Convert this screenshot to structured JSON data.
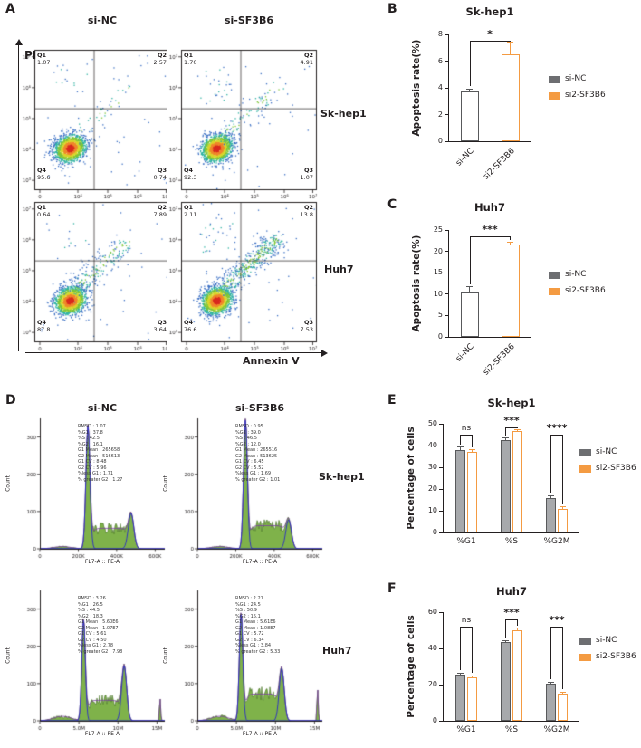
{
  "colors": {
    "ink": "#231f20",
    "gray": "#58595b",
    "gray_fill": "#a7a9ac",
    "orange": "#f49b42",
    "legend_gray": "#6d6e71",
    "green_fill": "#7fb24a"
  },
  "panel_a": {
    "label": "A",
    "col_headers": [
      "si-NC",
      "si-SF3B6"
    ],
    "row_labels": [
      "Sk-hep1",
      "Huh7"
    ],
    "y_axis_label": "PI",
    "x_axis_label": "Annexin V",
    "x_ticks": [
      "0",
      "10⁴",
      "10⁵",
      "10⁶",
      "10⁷"
    ],
    "y_ticks": [
      "10⁷",
      "10⁶",
      "10⁵",
      "10⁴",
      "10³"
    ],
    "plots": [
      {
        "id": "sk_nc",
        "row": "Sk-hep1",
        "col": "si-NC",
        "quadrants": {
          "q1": {
            "label": "Q1",
            "value": "1.07"
          },
          "q2": {
            "label": "Q2",
            "value": "2.57"
          },
          "q3": {
            "label": "Q3",
            "value": "0.74"
          },
          "q4": {
            "label": "Q4",
            "value": "95.6"
          }
        }
      },
      {
        "id": "sk_sf",
        "row": "Sk-hep1",
        "col": "si-SF3B6",
        "quadrants": {
          "q1": {
            "label": "Q1",
            "value": "1.70"
          },
          "q2": {
            "label": "Q2",
            "value": "4.91"
          },
          "q3": {
            "label": "Q3",
            "value": "1.07"
          },
          "q4": {
            "label": "Q4",
            "value": "92.3"
          }
        }
      },
      {
        "id": "huh_nc",
        "row": "Huh7",
        "col": "si-NC",
        "quadrants": {
          "q1": {
            "label": "Q1",
            "value": "0.64"
          },
          "q2": {
            "label": "Q2",
            "value": "7.89"
          },
          "q3": {
            "label": "Q3",
            "value": "3.64"
          },
          "q4": {
            "label": "Q4",
            "value": "87.8"
          }
        }
      },
      {
        "id": "huh_sf",
        "row": "Huh7",
        "col": "si-SF3B6",
        "quadrants": {
          "q1": {
            "label": "Q1",
            "value": "2.11"
          },
          "q2": {
            "label": "Q2",
            "value": "13.8"
          },
          "q3": {
            "label": "Q3",
            "value": "7.53"
          },
          "q4": {
            "label": "Q4",
            "value": "76.6"
          }
        }
      }
    ]
  },
  "panel_d": {
    "label": "D",
    "col_headers": [
      "si-NC",
      "si-SF3B6"
    ],
    "row_labels": [
      "Sk-hep1",
      "Huh7"
    ],
    "ylabel": "Count",
    "xlabel": "FL7-A :: PE-A",
    "yticks": [
      "0",
      "100",
      "200",
      "300"
    ],
    "ymax": 350,
    "hists": [
      {
        "id": "sk_nc",
        "xticks": {
          "labels": [
            "0",
            "200K",
            "400K",
            "600K"
          ],
          "fracs": [
            0.0,
            0.308,
            0.615,
            0.923
          ]
        },
        "stats": [
          "RMSD : 1.07",
          "%G1 : 37.8",
          "%S : 42.5",
          "%G2 : 16.1",
          "G1 Mean : 265658",
          "G2 Mean : 516613",
          "G1 CV : 8.48",
          "G2 CV : 5.96",
          "%less G1 : 1.71",
          "% greater G2 : 1.27"
        ],
        "render": {
          "g1_pos": 0.385,
          "g1_sd": 0.016,
          "g1_h": 330,
          "s_h": 55,
          "g2_pos": 0.73,
          "g2_sd": 0.022,
          "g2_h": 95,
          "debris_h": 6,
          "spike_h": 0
        }
      },
      {
        "id": "sk_sf",
        "xticks": {
          "labels": [
            "0",
            "200K",
            "400K",
            "600K"
          ],
          "fracs": [
            0.0,
            0.308,
            0.615,
            0.923
          ]
        },
        "stats": [
          "RMSD : 0.95",
          "%G1 : 39.0",
          "%S : 46.5",
          "%G2 : 12.0",
          "G1 Mean : 265516",
          "G2 Mean : 513625",
          "G1 CV : 6.45",
          "G2 CV : 5.52",
          "%less G1 : 1.69",
          "% greater G2 : 1.01"
        ],
        "render": {
          "g1_pos": 0.385,
          "g1_sd": 0.015,
          "g1_h": 345,
          "s_h": 62,
          "g2_pos": 0.73,
          "g2_sd": 0.022,
          "g2_h": 78,
          "debris_h": 6,
          "spike_h": 0
        }
      },
      {
        "id": "huh_nc",
        "xticks": {
          "labels": [
            "0",
            "5.0M",
            "10M",
            "15M"
          ],
          "fracs": [
            0.0,
            0.3125,
            0.625,
            0.9375
          ]
        },
        "stats": [
          "RMSD : 3.26",
          "%G1 : 26.5",
          "%S : 44.5",
          "%G2 : 18.3",
          "G1 Mean : 5.60E6",
          "G2 Mean : 1.07E7",
          "G1 CV : 5.61",
          "G2 CV : 4.50",
          "%less G1 : 2.78",
          "% greater G2 : 7.98"
        ],
        "render": {
          "g1_pos": 0.35,
          "g1_sd": 0.014,
          "g1_h": 272,
          "s_h": 55,
          "g2_pos": 0.675,
          "g2_sd": 0.02,
          "g2_h": 148,
          "debris_h": 12,
          "spike_h": 62
        }
      },
      {
        "id": "huh_sf",
        "xticks": {
          "labels": [
            "0",
            "5.0M",
            "10M",
            "15M"
          ],
          "fracs": [
            0.0,
            0.3125,
            0.625,
            0.9375
          ]
        },
        "stats": [
          "RMSD : 2.21",
          "%G1 : 24.5",
          "%S : 50.9",
          "%G2 : 15.1",
          "G1 Mean : 5.61E6",
          "G2 Mean : 1.08E7",
          "G1 CV : 5.72",
          "G2 CV : 6.34",
          "%less G1 : 3.84",
          "% greater G2 : 5.33"
        ],
        "render": {
          "g1_pos": 0.35,
          "g1_sd": 0.014,
          "g1_h": 288,
          "s_h": 72,
          "g2_pos": 0.675,
          "g2_sd": 0.02,
          "g2_h": 140,
          "debris_h": 12,
          "spike_h": 88
        }
      }
    ]
  },
  "chart_data": [
    {
      "id": "B",
      "panel_label": "B",
      "type": "bar",
      "title": "Sk-hep1",
      "ylabel": "Apoptosis rate(%)",
      "ylim": [
        0,
        8
      ],
      "yticks": [
        "0",
        "2",
        "4",
        "6",
        "8"
      ],
      "categories": [
        "si-NC",
        "si2-SF3B6"
      ],
      "values": [
        3.7,
        6.5
      ],
      "errors": [
        0.2,
        0.9
      ],
      "rotate_xlabels": true,
      "significance": [
        {
          "label": "*",
          "between": [
            0,
            1
          ],
          "height": 7.5
        }
      ],
      "legend": [
        "si-NC",
        "si2-SF3B6"
      ]
    },
    {
      "id": "C",
      "panel_label": "C",
      "type": "bar",
      "title": "Huh7",
      "ylabel": "Apoptosis rate(%)",
      "ylim": [
        0,
        25
      ],
      "yticks": [
        "0",
        "5",
        "10",
        "15",
        "20",
        "25"
      ],
      "categories": [
        "si-NC",
        "si2-SF3B6"
      ],
      "values": [
        10.3,
        21.7
      ],
      "errors": [
        1.4,
        0.4
      ],
      "rotate_xlabels": true,
      "significance": [
        {
          "label": "***",
          "between": [
            0,
            1
          ],
          "height": 23.5
        }
      ],
      "legend": [
        "si-NC",
        "si2-SF3B6"
      ]
    },
    {
      "id": "E",
      "panel_label": "E",
      "type": "bar",
      "title": "Sk-hep1",
      "ylabel": "Percentage of cells",
      "ylim": [
        0,
        50
      ],
      "yticks": [
        "0",
        "10",
        "20",
        "30",
        "40",
        "50"
      ],
      "categories": [
        "%G1",
        "%S",
        "%G2M"
      ],
      "series": [
        {
          "name": "si-NC",
          "values": [
            38,
            42.5,
            16
          ],
          "errors": [
            1.2,
            1,
            1
          ]
        },
        {
          "name": "si2-SF3B6",
          "values": [
            37,
            46.5,
            11
          ],
          "errors": [
            1,
            1,
            0.8
          ]
        }
      ],
      "significance": [
        {
          "label": "ns",
          "group": 0,
          "height": 45
        },
        {
          "label": "***",
          "group": 1,
          "height": 48.5
        },
        {
          "label": "****",
          "group": 2,
          "height": 45
        }
      ],
      "legend": [
        "si-NC",
        "si2-SF3B6"
      ]
    },
    {
      "id": "F",
      "panel_label": "F",
      "type": "bar",
      "title": "Huh7",
      "ylabel": "Percentage of cells",
      "ylim": [
        0,
        60
      ],
      "yticks": [
        "0",
        "20",
        "40",
        "60"
      ],
      "categories": [
        "%G1",
        "%S",
        "%G2M"
      ],
      "series": [
        {
          "name": "si-NC",
          "values": [
            25.5,
            43.5,
            20.5
          ],
          "errors": [
            1,
            1,
            1
          ]
        },
        {
          "name": "si2-SF3B6",
          "values": [
            24,
            50,
            15
          ],
          "errors": [
            1,
            1.2,
            1
          ]
        }
      ],
      "significance": [
        {
          "label": "ns",
          "group": 0,
          "height": 52
        },
        {
          "label": "***",
          "group": 1,
          "height": 56
        },
        {
          "label": "***",
          "group": 2,
          "height": 52
        }
      ],
      "legend": [
        "si-NC",
        "si2-SF3B6"
      ]
    }
  ]
}
